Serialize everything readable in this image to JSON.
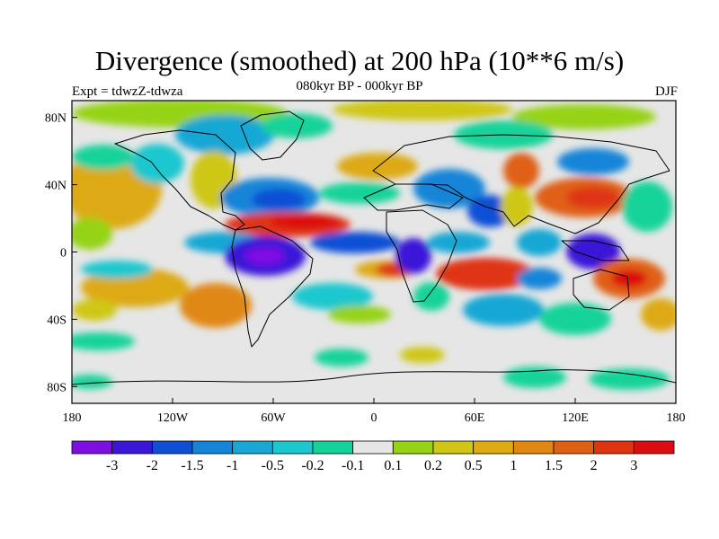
{
  "title": "Divergence (smoothed) at 200 hPa (10**6 m/s)",
  "subtitle": "080kyr BP - 000kyr BP",
  "experiment": "Expt = tdwzZ-tdwza",
  "season": "DJF",
  "map": {
    "lat_range": [
      -90,
      90
    ],
    "lon_range": [
      -180,
      180
    ],
    "lat_ticks": [
      {
        "value": 80,
        "label": "80N"
      },
      {
        "value": 40,
        "label": "40N"
      },
      {
        "value": 0,
        "label": "0"
      },
      {
        "value": -40,
        "label": "40S"
      },
      {
        "value": -80,
        "label": "80S"
      }
    ],
    "lon_ticks": [
      {
        "value": -180,
        "label": "180"
      },
      {
        "value": -120,
        "label": "120W"
      },
      {
        "value": -60,
        "label": "60W"
      },
      {
        "value": 0,
        "label": "0"
      },
      {
        "value": 60,
        "label": "60E"
      },
      {
        "value": 120,
        "label": "120E"
      },
      {
        "value": 180,
        "label": "180"
      }
    ]
  },
  "colorbar": {
    "colors": [
      "#7e0fe3",
      "#3a16d8",
      "#0e4fd6",
      "#1585d8",
      "#19a7d5",
      "#1cc7cf",
      "#14d39a",
      "#e6e6e6",
      "#96d316",
      "#cfc714",
      "#ddaa12",
      "#e08812",
      "#df6012",
      "#df3412",
      "#dc0d10"
    ],
    "labels": [
      "-3",
      "-2",
      "-1.5",
      "-1",
      "-0.5",
      "-0.2",
      "-0.1",
      "0.1",
      "0.2",
      "0.5",
      "1",
      "1.5",
      "2",
      "3"
    ]
  }
}
